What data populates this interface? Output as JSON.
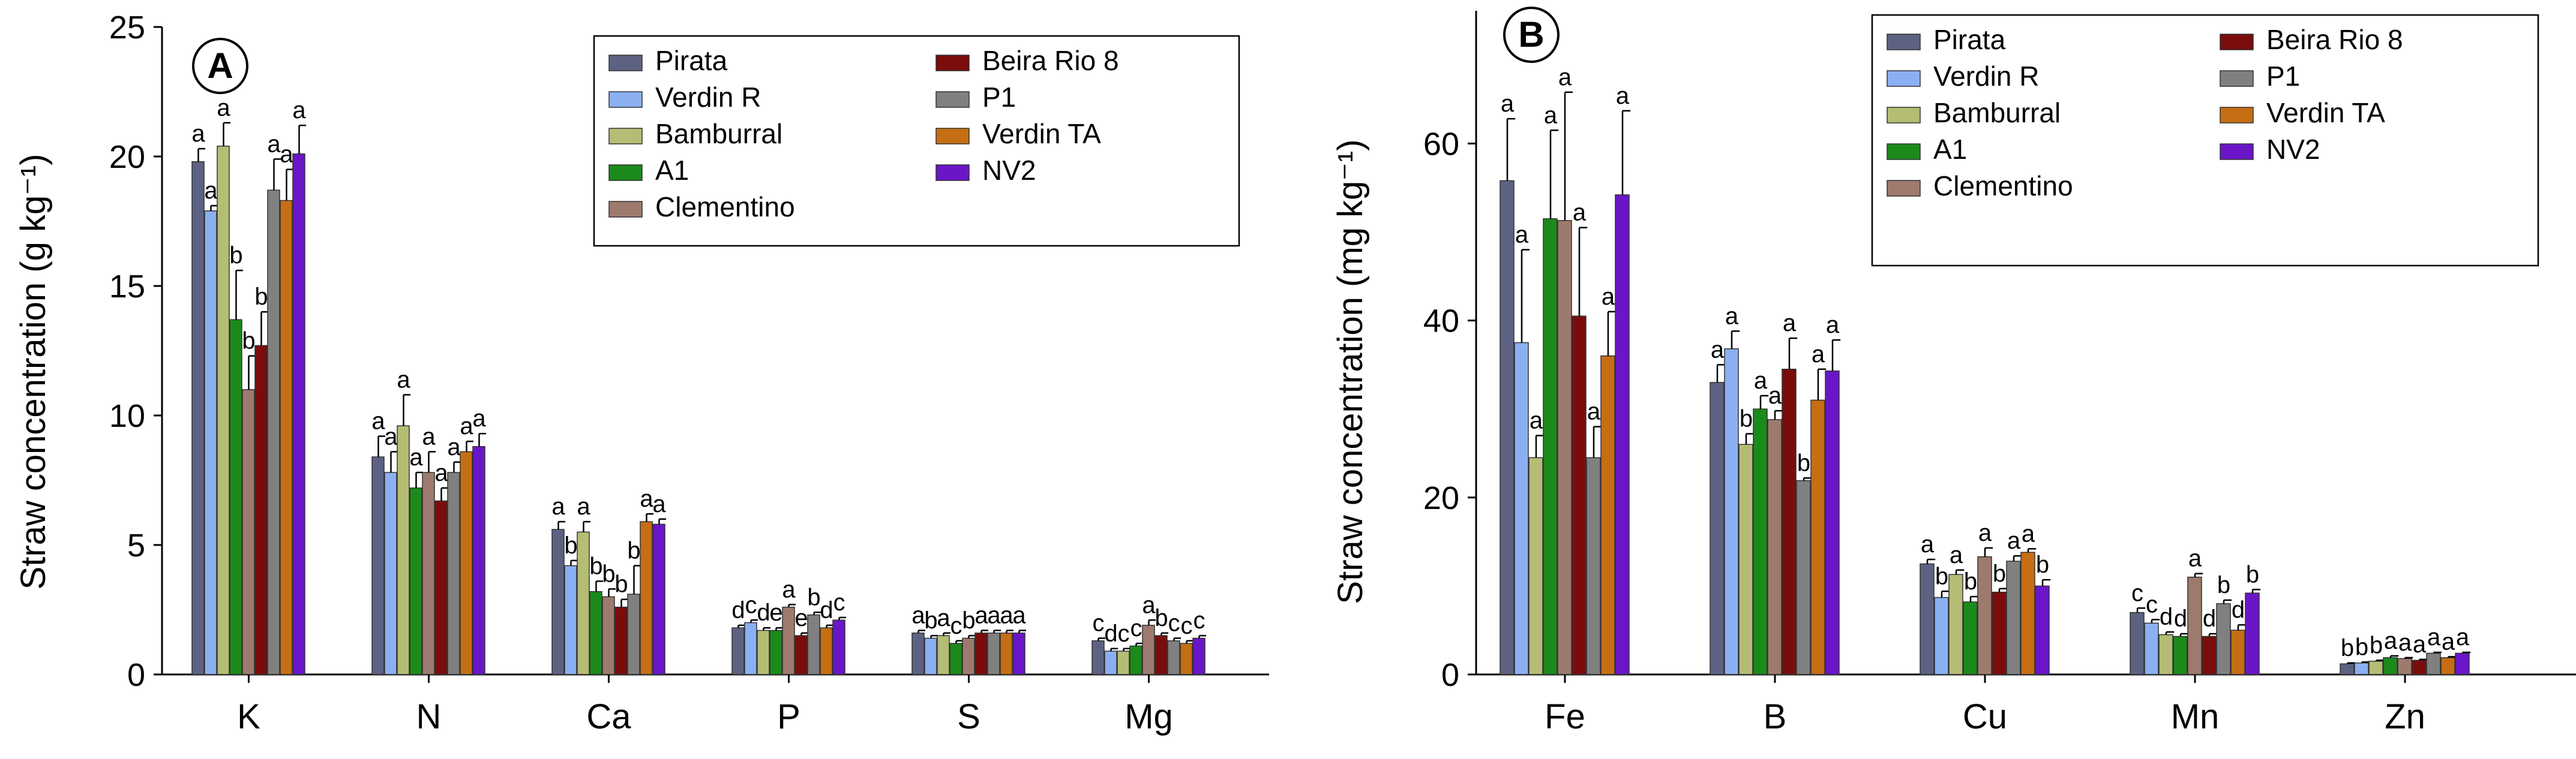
{
  "chart_data": [
    {
      "type": "bar",
      "panel": "A",
      "ylabel": "Straw concentration (g kg⁻¹)",
      "ylim": [
        0,
        25
      ],
      "yticks": [
        0,
        5,
        10,
        15,
        20,
        25
      ],
      "categories": [
        "K",
        "N",
        "Ca",
        "P",
        "S",
        "Mg"
      ],
      "series": [
        {
          "name": "Pirata",
          "color": "#5d6282",
          "values": [
            19.8,
            8.4,
            5.6,
            1.8,
            1.6,
            1.3
          ],
          "errors": [
            0.5,
            0.8,
            0.3,
            0.1,
            0.1,
            0.1
          ],
          "letters": [
            "a",
            "a",
            "a",
            "d",
            "a",
            "c"
          ]
        },
        {
          "name": "Verdin R",
          "color": "#8bb0f2",
          "values": [
            17.9,
            7.8,
            4.2,
            2.0,
            1.4,
            0.9
          ],
          "errors": [
            0.2,
            0.8,
            0.2,
            0.1,
            0.1,
            0.1
          ],
          "letters": [
            "a",
            "a",
            "b",
            "c",
            "b",
            "d"
          ]
        },
        {
          "name": "Bamburral",
          "color": "#b5bd74",
          "values": [
            20.4,
            9.6,
            5.5,
            1.7,
            1.5,
            0.9
          ],
          "errors": [
            0.9,
            1.2,
            0.4,
            0.1,
            0.1,
            0.1
          ],
          "letters": [
            "a",
            "a",
            "a",
            "d",
            "a",
            "c"
          ]
        },
        {
          "name": "A1",
          "color": "#1b8a1b",
          "values": [
            13.7,
            7.2,
            3.2,
            1.7,
            1.2,
            1.1
          ],
          "errors": [
            1.9,
            0.6,
            0.4,
            0.1,
            0.1,
            0.1
          ],
          "letters": [
            "b",
            "a",
            "b",
            "e",
            "c",
            "c"
          ]
        },
        {
          "name": "Clementino",
          "color": "#9e7a6e",
          "values": [
            11.0,
            7.8,
            3.0,
            2.6,
            1.4,
            1.9
          ],
          "errors": [
            1.3,
            0.8,
            0.3,
            0.1,
            0.1,
            0.2
          ],
          "letters": [
            "b",
            "a",
            "b",
            "a",
            "b",
            "a"
          ]
        },
        {
          "name": "Beira Rio 8",
          "color": "#7a0c0c",
          "values": [
            12.7,
            6.7,
            2.6,
            1.5,
            1.6,
            1.5
          ],
          "errors": [
            1.3,
            0.5,
            0.3,
            0.1,
            0.1,
            0.1
          ],
          "letters": [
            "b",
            "a",
            "b",
            "e",
            "a",
            "b"
          ]
        },
        {
          "name": "P1",
          "color": "#808080",
          "values": [
            18.7,
            7.8,
            3.1,
            2.3,
            1.6,
            1.3
          ],
          "errors": [
            1.2,
            0.4,
            1.1,
            0.1,
            0.1,
            0.1
          ],
          "letters": [
            "a",
            "a",
            "b",
            "b",
            "a",
            "c"
          ]
        },
        {
          "name": "Verdin TA",
          "color": "#c56e14",
          "values": [
            18.3,
            8.6,
            5.9,
            1.8,
            1.6,
            1.2
          ],
          "errors": [
            1.2,
            0.4,
            0.3,
            0.1,
            0.1,
            0.1
          ],
          "letters": [
            "a",
            "a",
            "a",
            "d",
            "a",
            "c"
          ]
        },
        {
          "name": "NV2",
          "color": "#6a16c8",
          "values": [
            20.1,
            8.8,
            5.8,
            2.1,
            1.6,
            1.4
          ],
          "errors": [
            1.1,
            0.5,
            0.2,
            0.1,
            0.1,
            0.1
          ],
          "letters": [
            "a",
            "a",
            "a",
            "c",
            "a",
            "c"
          ]
        }
      ],
      "legend_position": "top-right"
    },
    {
      "type": "bar",
      "panel": "B",
      "ylabel": "Straw concentration (mg kg⁻¹)",
      "ylim": [
        0,
        75
      ],
      "yticks": [
        0,
        20,
        40,
        60
      ],
      "categories": [
        "Fe",
        "B",
        "Cu",
        "Mn",
        "Zn"
      ],
      "series": [
        {
          "name": "Pirata",
          "color": "#5d6282",
          "values": [
            55.8,
            33.0,
            12.5,
            7.0,
            1.2
          ],
          "errors": [
            7.0,
            2.0,
            0.5,
            0.5,
            0.1
          ],
          "letters": [
            "a",
            "a",
            "a",
            "c",
            "b"
          ]
        },
        {
          "name": "Verdin R",
          "color": "#8bb0f2",
          "values": [
            37.5,
            36.8,
            8.7,
            5.8,
            1.3
          ],
          "errors": [
            10.5,
            2.0,
            0.7,
            0.4,
            0.1
          ],
          "letters": [
            "a",
            "a",
            "b",
            "c",
            "b"
          ]
        },
        {
          "name": "Bamburral",
          "color": "#b5bd74",
          "values": [
            24.5,
            26.0,
            11.3,
            4.5,
            1.5
          ],
          "errors": [
            2.5,
            1.2,
            0.5,
            0.3,
            0.1
          ],
          "letters": [
            "a",
            "b",
            "a",
            "d",
            "b"
          ]
        },
        {
          "name": "A1",
          "color": "#1b8a1b",
          "values": [
            51.5,
            30.0,
            8.2,
            4.3,
            1.9
          ],
          "errors": [
            10.0,
            1.5,
            0.6,
            0.3,
            0.2
          ],
          "letters": [
            "a",
            "a",
            "b",
            "d",
            "a"
          ]
        },
        {
          "name": "Clementino",
          "color": "#9e7a6e",
          "values": [
            51.3,
            28.8,
            13.3,
            11.0,
            1.8
          ],
          "errors": [
            14.5,
            1.0,
            1.0,
            0.4,
            0.1
          ],
          "letters": [
            "a",
            "a",
            "a",
            "a",
            "a"
          ]
        },
        {
          "name": "Beira Rio 8",
          "color": "#7a0c0c",
          "values": [
            40.5,
            34.5,
            9.3,
            4.3,
            1.6
          ],
          "errors": [
            10.0,
            3.5,
            0.4,
            0.3,
            0.1
          ],
          "letters": [
            "a",
            "a",
            "b",
            "d",
            "a"
          ]
        },
        {
          "name": "P1",
          "color": "#808080",
          "values": [
            24.5,
            21.9,
            12.8,
            8.0,
            2.4
          ],
          "errors": [
            3.5,
            0.3,
            0.6,
            0.4,
            0.1
          ],
          "letters": [
            "a",
            "b",
            "a",
            "b",
            "a"
          ]
        },
        {
          "name": "Verdin TA",
          "color": "#c56e14",
          "values": [
            36.0,
            31.0,
            13.8,
            5.0,
            1.9
          ],
          "errors": [
            5.0,
            3.5,
            0.4,
            0.6,
            0.1
          ],
          "letters": [
            "a",
            "a",
            "a",
            "d",
            "a"
          ]
        },
        {
          "name": "NV2",
          "color": "#6a16c8",
          "values": [
            54.2,
            34.3,
            10.0,
            9.2,
            2.4
          ],
          "errors": [
            9.5,
            3.5,
            0.7,
            0.4,
            0.1
          ],
          "letters": [
            "a",
            "a",
            "b",
            "b",
            "a"
          ]
        }
      ],
      "legend_position": "top-right"
    }
  ]
}
